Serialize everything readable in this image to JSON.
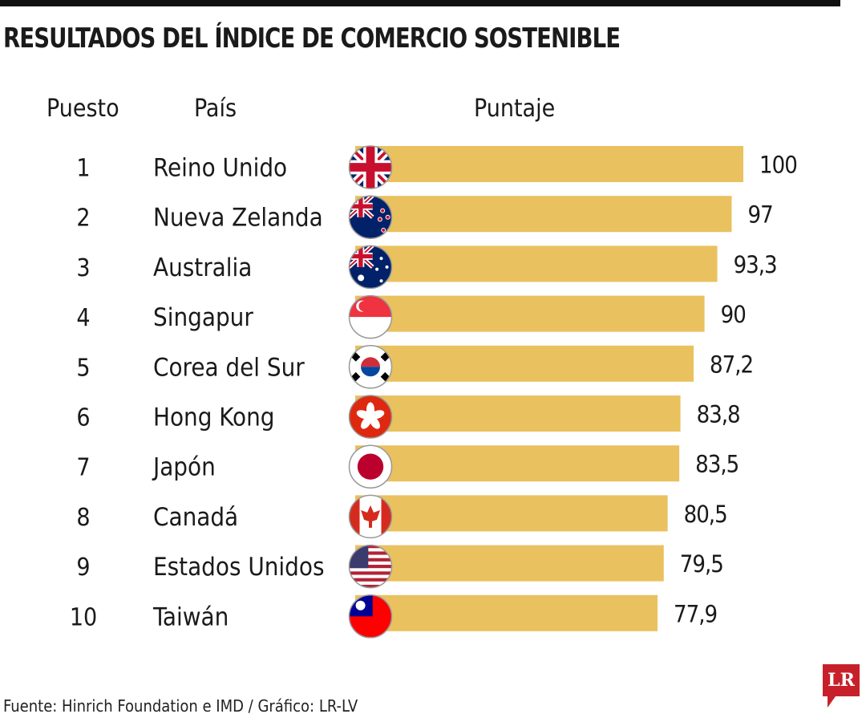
{
  "title": "RESULTADOS DEL ÍNDICE DE COMERCIO SOSTENIBLE",
  "headers": {
    "rank": "Puesto",
    "country": "País",
    "score": "Puntaje"
  },
  "footer": "Fuente: Hinrich Foundation e IMD / Gráfico: LR-LV",
  "logo": "LR",
  "colors": {
    "bar": "#e9c15e",
    "logo": "#c8202a"
  },
  "chart_data": {
    "type": "bar",
    "orientation": "horizontal",
    "title": "RESULTADOS DEL ÍNDICE DE COMERCIO SOSTENIBLE",
    "xlim": [
      0,
      100
    ],
    "rows": [
      {
        "rank": "1",
        "country": "Reino Unido",
        "value": 100,
        "label": "100",
        "flag": "uk"
      },
      {
        "rank": "2",
        "country": "Nueva Zelanda",
        "value": 97,
        "label": "97",
        "flag": "nz"
      },
      {
        "rank": "3",
        "country": "Australia",
        "value": 93.3,
        "label": "93,3",
        "flag": "au"
      },
      {
        "rank": "4",
        "country": "Singapur",
        "value": 90,
        "label": "90",
        "flag": "sg"
      },
      {
        "rank": "5",
        "country": "Corea del Sur",
        "value": 87.2,
        "label": "87,2",
        "flag": "kr"
      },
      {
        "rank": "6",
        "country": "Hong Kong",
        "value": 83.8,
        "label": "83,8",
        "flag": "hk"
      },
      {
        "rank": "7",
        "country": "Japón",
        "value": 83.5,
        "label": "83,5",
        "flag": "jp"
      },
      {
        "rank": "8",
        "country": "Canadá",
        "value": 80.5,
        "label": "80,5",
        "flag": "ca"
      },
      {
        "rank": "9",
        "country": "Estados Unidos",
        "value": 79.5,
        "label": "79,5",
        "flag": "us"
      },
      {
        "rank": "10",
        "country": "Taiwán",
        "value": 77.9,
        "label": "77,9",
        "flag": "tw"
      }
    ]
  }
}
